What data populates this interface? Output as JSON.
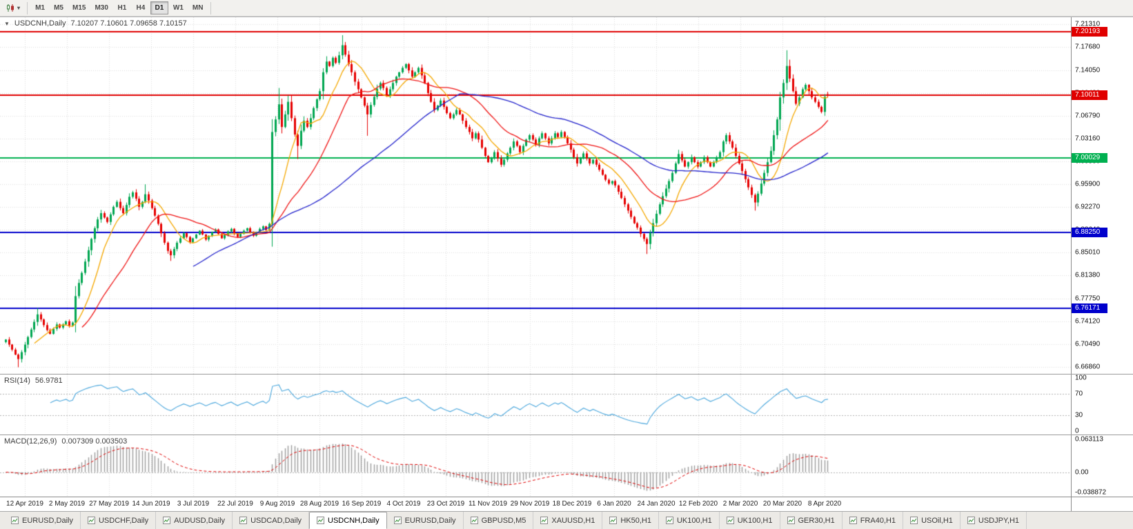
{
  "toolbar": {
    "chart_type_button": {
      "icon": "candlestick-chart-icon",
      "caret": "▾"
    },
    "timeframes": [
      {
        "label": "M1",
        "active": false
      },
      {
        "label": "M5",
        "active": false
      },
      {
        "label": "M15",
        "active": false
      },
      {
        "label": "M30",
        "active": false
      },
      {
        "label": "H1",
        "active": false
      },
      {
        "label": "H4",
        "active": false
      },
      {
        "label": "D1",
        "active": true
      },
      {
        "label": "W1",
        "active": false
      },
      {
        "label": "MN",
        "active": false
      }
    ]
  },
  "chart": {
    "collapse_glyph": "▼",
    "header_title": "USDCNH,Daily",
    "header_ohlc": "7.10207 7.10601 7.09658 7.10157"
  },
  "rsi": {
    "label": "RSI(14)",
    "value": "56.9781",
    "scale": [
      "100",
      "70",
      "30",
      "0"
    ],
    "levels": [
      70,
      30
    ],
    "line_color": "#4aa7dd"
  },
  "macd": {
    "label": "MACD(12,26,9)",
    "values": "0.007309 0.003503",
    "scale_top": "0.063113",
    "scale_zero": "0.00",
    "scale_bottom": "-0.038872",
    "histogram_color": "#9c9c9c",
    "signal_color": "#e00000"
  },
  "date_axis": [
    "12 Apr 2019",
    "2 May 2019",
    "27 May 2019",
    "14 Jun 2019",
    "3 Jul 2019",
    "22 Jul 2019",
    "9 Aug 2019",
    "28 Aug 2019",
    "16 Sep 2019",
    "4 Oct 2019",
    "23 Oct 2019",
    "11 Nov 2019",
    "29 Nov 2019",
    "18 Dec 2019",
    "6 Jan 2020",
    "24 Jan 2020",
    "12 Feb 2020",
    "2 Mar 2020",
    "20 Mar 2020",
    "8 Apr 2020"
  ],
  "tabs": [
    {
      "label": "EURUSD,Daily",
      "active": false
    },
    {
      "label": "USDCHF,Daily",
      "active": false
    },
    {
      "label": "AUDUSD,Daily",
      "active": false
    },
    {
      "label": "USDCAD,Daily",
      "active": false
    },
    {
      "label": "USDCNH,Daily",
      "active": true
    },
    {
      "label": "EURUSD,Daily",
      "active": false
    },
    {
      "label": "GBPUSD,M5",
      "active": false
    },
    {
      "label": "XAUUSD,H1",
      "active": false
    },
    {
      "label": "HK50,H1",
      "active": false
    },
    {
      "label": "UK100,H1",
      "active": false
    },
    {
      "label": "UK100,H1",
      "active": false
    },
    {
      "label": "GER30,H1",
      "active": false
    },
    {
      "label": "FRA40,H1",
      "active": false
    },
    {
      "label": "USOil,H1",
      "active": false
    },
    {
      "label": "USDJPY,H1",
      "active": false
    }
  ],
  "chart_data": {
    "type": "candlestick",
    "symbol": "USDCNH",
    "timeframe": "Daily",
    "current_ohlc": {
      "open": "7.10207",
      "high": "7.10601",
      "low": "7.09658",
      "close": "7.10157"
    },
    "colors": {
      "up": "#00a651",
      "down": "#e60000",
      "grid": "#dcdcdc",
      "background": "#ffffff"
    },
    "y_axis": {
      "max": 7.2245,
      "min": 6.6575,
      "ticks": [
        "7.21310",
        "7.17680",
        "7.14050",
        "7.10420",
        "7.06790",
        "7.03160",
        "6.99530",
        "6.95900",
        "6.92270",
        "6.88640",
        "6.85010",
        "6.81380",
        "6.77750",
        "6.74120",
        "6.70490",
        "6.66860"
      ]
    },
    "horizontal_lines": [
      {
        "price": 7.20193,
        "color": "#e00000",
        "label": "7.20193"
      },
      {
        "price": 7.10011,
        "color": "#e00000",
        "label": "7.10011"
      },
      {
        "price": 7.00029,
        "color": "#00b050",
        "label": "7.00029"
      },
      {
        "price": 6.8825,
        "color": "#0000cc",
        "label": "6.88250"
      },
      {
        "price": 6.76171,
        "color": "#0000cc",
        "label": "6.76171"
      }
    ],
    "moving_averages": [
      {
        "period": 10,
        "color": "#f5a800"
      },
      {
        "period": 25,
        "color": "#f01414"
      },
      {
        "period": 60,
        "color": "#2222cc"
      }
    ],
    "closes": [
      6.712,
      6.704,
      6.696,
      6.688,
      6.681,
      6.692,
      6.704,
      6.716,
      6.728,
      6.74,
      6.752,
      6.744,
      6.735,
      6.727,
      6.721,
      6.729,
      6.736,
      6.731,
      6.736,
      6.741,
      6.734,
      6.739,
      6.781,
      6.802,
      6.818,
      6.836,
      6.854,
      6.872,
      6.889,
      6.903,
      6.913,
      6.906,
      6.899,
      6.911,
      6.923,
      6.931,
      6.921,
      6.913,
      6.926,
      6.939,
      6.946,
      6.936,
      6.923,
      6.931,
      6.943,
      6.933,
      6.921,
      6.909,
      6.896,
      6.881,
      6.866,
      6.853,
      6.846,
      6.856,
      6.866,
      6.873,
      6.881,
      6.875,
      6.867,
      6.873,
      6.879,
      6.885,
      6.879,
      6.871,
      6.877,
      6.883,
      6.887,
      6.88,
      6.873,
      6.878,
      6.884,
      6.888,
      6.881,
      6.875,
      6.88,
      6.885,
      6.889,
      6.883,
      6.877,
      6.883,
      6.888,
      6.892,
      6.886,
      6.896,
      7.042,
      7.062,
      7.086,
      7.05,
      7.07,
      7.09,
      7.064,
      7.038,
      7.02,
      7.044,
      7.06,
      7.05,
      7.064,
      7.08,
      7.094,
      7.107,
      7.137,
      7.154,
      7.147,
      7.16,
      7.152,
      7.164,
      7.18,
      7.165,
      7.15,
      7.137,
      7.122,
      7.11,
      7.097,
      7.084,
      7.07,
      7.085,
      7.098,
      7.111,
      7.12,
      7.112,
      7.1,
      7.11,
      7.12,
      7.13,
      7.137,
      7.144,
      7.15,
      7.14,
      7.13,
      7.137,
      7.144,
      7.132,
      7.12,
      7.104,
      7.09,
      7.077,
      7.084,
      7.092,
      7.082,
      7.072,
      7.064,
      7.07,
      7.077,
      7.07,
      7.06,
      7.05,
      7.042,
      7.032,
      7.04,
      7.03,
      7.017,
      7.004,
      6.994,
      7.0,
      7.01,
      7.0,
      6.99,
      6.998,
      7.008,
      7.017,
      7.027,
      7.02,
      7.01,
      7.02,
      7.03,
      7.037,
      7.03,
      7.022,
      7.032,
      7.04,
      7.032,
      7.024,
      7.032,
      7.04,
      7.034,
      7.042,
      7.034,
      7.024,
      7.014,
      7.002,
      6.992,
      7.0,
      7.008,
      7.0,
      6.992,
      6.998,
      6.99,
      6.982,
      6.974,
      6.966,
      6.96,
      6.964,
      6.957,
      6.947,
      6.937,
      6.927,
      6.917,
      6.907,
      6.897,
      6.89,
      6.88,
      6.872,
      6.864,
      6.882,
      6.897,
      6.912,
      6.927,
      6.94,
      6.952,
      6.964,
      6.977,
      6.992,
      7.007,
      6.997,
      6.987,
      6.994,
      7.002,
      6.994,
      6.987,
      6.994,
      7.002,
      6.994,
      6.987,
      6.994,
      7.002,
      7.01,
      7.027,
      7.037,
      7.027,
      7.017,
      7.004,
      6.992,
      6.98,
      6.967,
      6.954,
      6.942,
      6.93,
      6.944,
      6.96,
      6.977,
      6.994,
      7.012,
      7.037,
      7.062,
      7.097,
      7.12,
      7.147,
      7.127,
      7.107,
      7.087,
      7.097,
      7.11,
      7.117,
      7.107,
      7.097,
      7.09,
      7.082,
      7.074,
      7.098,
      7.102
    ],
    "wick_overrides": {
      "4": [
        null,
        6.668
      ],
      "10": [
        6.762,
        null
      ],
      "44": [
        6.959,
        null
      ],
      "52": [
        null,
        6.837
      ],
      "84": [
        7.058,
        6.894
      ],
      "86": [
        7.112,
        null
      ],
      "92": [
        null,
        6.999
      ],
      "106": [
        7.196,
        null
      ],
      "114": [
        null,
        7.036
      ],
      "202": [
        null,
        6.848
      ],
      "236": [
        null,
        6.917
      ],
      "246": [
        7.172,
        null
      ]
    },
    "last_candle": [
      7.10207,
      7.10601,
      7.09658,
      7.10157
    ]
  }
}
